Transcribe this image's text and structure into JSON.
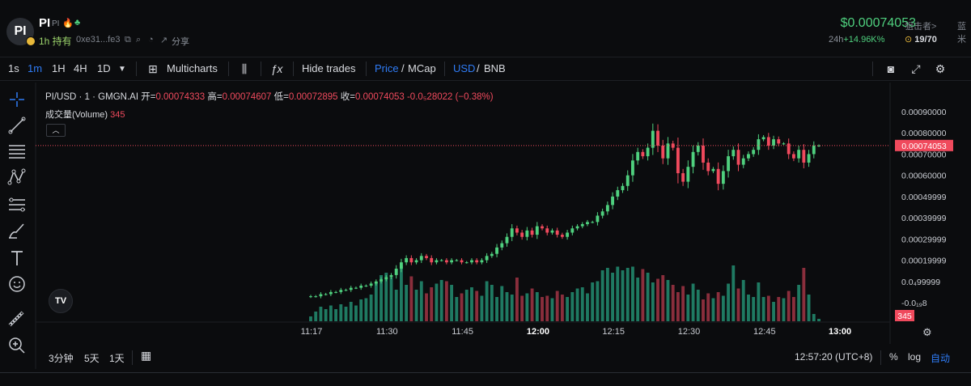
{
  "header": {
    "avatar_text": "PI",
    "token_name": "PI",
    "token_small": "PI",
    "holding_label": "1h 持有",
    "address": "0xe31...fe3",
    "share_label": "分享",
    "price": "$0.00074053",
    "sniper_label": "狙击者>",
    "blue_label": "蓝米",
    "change_label": "24h",
    "change_value": "+14.96K%",
    "holders": "19/70"
  },
  "toolbar": {
    "intervals": [
      "1s",
      "1m",
      "1H",
      "4H",
      "1D"
    ],
    "active_interval": "1m",
    "multicharts": "Multicharts",
    "hide_trades": "Hide trades",
    "price": "Price",
    "mcap": "MCap",
    "usd": "USD",
    "bnb": "BNB",
    "slash": "/"
  },
  "legend": {
    "symbol": "PI/USD · 1 · GMGN.AI",
    "open_label": "开=",
    "open": "0.00074333",
    "high_label": "高=",
    "high": "0.00074607",
    "low_label": "低=",
    "low": "0.00072895",
    "close_label": "收=",
    "close": "0.00074053",
    "change": "-0.0₅28022 (−0.38%)",
    "volume_label": "成交量(Volume)",
    "volume_value": "345"
  },
  "chart_data": {
    "type": "candlestick",
    "y_axis_labels": [
      "0.00090000",
      "0.00080000",
      "0.00070000",
      "0.00060000",
      "0.00049999",
      "0.00039999",
      "0.00029999",
      "0.00019999",
      "0.0₄99999",
      "-0.0₁₉8"
    ],
    "y_axis_values": [
      0.0009,
      0.0008,
      0.0007,
      0.0006,
      0.0005,
      0.0004,
      0.0003,
      0.0002,
      0.0001,
      0.0
    ],
    "time_labels": [
      "11:17",
      "11:30",
      "11:45",
      "12:00",
      "12:15",
      "12:30",
      "12:45",
      "13:00"
    ],
    "current_price_label": "0.00074053",
    "current_price": 0.00074053,
    "current_volume_label": "345",
    "up_color": "#4fd07e",
    "down_color": "#f04a5d",
    "up_volume_color": "#1f7a62",
    "down_volume_color": "#8a2e3c",
    "closes": [
      3e-05,
      3e-05,
      4e-05,
      4e-05,
      5e-05,
      5e-05,
      6e-05,
      6e-05,
      7e-05,
      7e-05,
      8e-05,
      8e-05,
      9e-05,
      0.0001,
      0.00011,
      0.00012,
      0.00013,
      0.00016,
      0.00019,
      0.00021,
      0.00019,
      0.0002,
      0.00022,
      0.00021,
      0.00019,
      0.0002,
      0.0002,
      0.00019,
      0.0002,
      0.0002,
      0.00019,
      0.00019,
      0.0002,
      0.00019,
      0.0002,
      0.00022,
      0.00023,
      0.00026,
      0.00028,
      0.00031,
      0.00035,
      0.00033,
      0.00031,
      0.00034,
      0.00032,
      0.00036,
      0.00035,
      0.00033,
      0.00034,
      0.00032,
      0.00031,
      0.00033,
      0.00035,
      0.00036,
      0.00037,
      0.00038,
      0.00038,
      0.00041,
      0.00043,
      0.00046,
      0.0005,
      0.00053,
      0.00055,
      0.0006,
      0.00067,
      0.00071,
      0.00069,
      0.00073,
      0.00081,
      0.00074,
      0.00068,
      0.00075,
      0.00073,
      0.00061,
      0.00057,
      0.00064,
      0.00071,
      0.00074,
      0.00066,
      0.00062,
      0.00063,
      0.00056,
      0.00062,
      0.00069,
      0.00072,
      0.00065,
      0.00068,
      0.0007,
      0.00072,
      0.00077,
      0.00078,
      0.00074,
      0.00077,
      0.00075,
      0.00075,
      0.0007,
      0.00068,
      0.00072,
      0.00066,
      0.0007,
      0.00074,
      0.00074
    ],
    "volumes": [
      0.4,
      0.8,
      1.2,
      1.0,
      1.3,
      1.0,
      1.4,
      1.2,
      1.6,
      1.3,
      1.8,
      1.9,
      2.2,
      3.2,
      3.8,
      4.0,
      3.6,
      2.6,
      4.6,
      3.0,
      3.7,
      2.6,
      3.3,
      2.3,
      2.8,
      3.1,
      3.4,
      3.3,
      3.0,
      2.0,
      2.3,
      2.6,
      2.8,
      2.5,
      2.1,
      3.3,
      3.0,
      2.0,
      2.9,
      2.4,
      2.2,
      3.6,
      2.1,
      2.3,
      2.7,
      2.4,
      2.0,
      2.1,
      1.9,
      2.5,
      2.2,
      2.0,
      2.4,
      2.7,
      2.8,
      2.3,
      3.2,
      3.3,
      4.2,
      4.4,
      4.0,
      4.5,
      4.2,
      4.4,
      4.5,
      3.6,
      4.3,
      4.0,
      3.2,
      3.5,
      3.8,
      3.4,
      3.0,
      2.4,
      2.9,
      2.2,
      3.1,
      2.6,
      1.8,
      2.3,
      1.9,
      2.4,
      2.1,
      3.1,
      4.6,
      2.7,
      3.4,
      2.2,
      2.0,
      3.2,
      2.0,
      2.1,
      1.6,
      2.0,
      1.9,
      2.5,
      2.0,
      3.0,
      4.4,
      2.2,
      0.6,
      0.2
    ]
  },
  "bottom": {
    "range_3m": "3分钟",
    "range_5d": "5天",
    "range_1d": "1天",
    "clock": "12:57:20 (UTC+8)",
    "pct": "%",
    "log": "log",
    "auto": "自动"
  }
}
